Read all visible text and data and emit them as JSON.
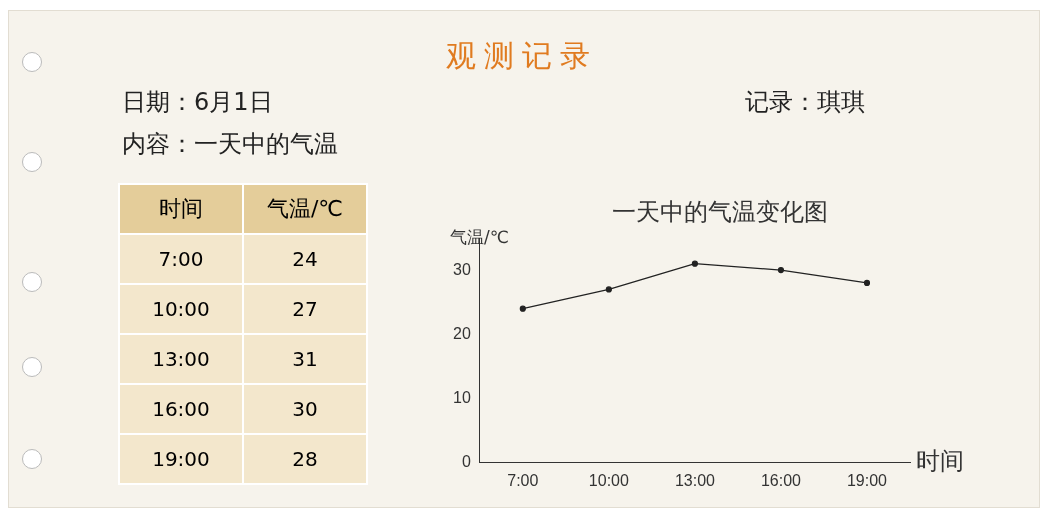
{
  "chart_data": [
    {
      "type": "other",
      "title": "观测记录",
      "annotations": [
        "日期：6月1日",
        "记录：琪琪",
        "内容：一天中的气温"
      ]
    },
    {
      "type": "heatmap",
      "ylabel": "时间",
      "categories": [
        "气温/℃"
      ],
      "y_categories": [
        "7:00",
        "10:00",
        "13:00",
        "16:00",
        "19:00"
      ],
      "cells": [
        [
          24
        ],
        [
          27
        ],
        [
          31
        ],
        [
          30
        ],
        [
          28
        ]
      ],
      "data_labels": true
    },
    {
      "type": "line",
      "title": "一天中的气温变化图",
      "xlabel": "时间",
      "ylabel": "气温/℃",
      "categories": [
        "7:00",
        "10:00",
        "13:00",
        "16:00",
        "19:00"
      ],
      "series": [
        {
          "color": "#222222",
          "values": [
            24,
            27,
            31,
            30,
            28
          ]
        }
      ],
      "ylim": [
        0,
        35
      ],
      "yticks": [
        0,
        10,
        20,
        30
      ],
      "grid": false,
      "legend": false,
      "marker": "circle",
      "line_style": "solid"
    }
  ]
}
